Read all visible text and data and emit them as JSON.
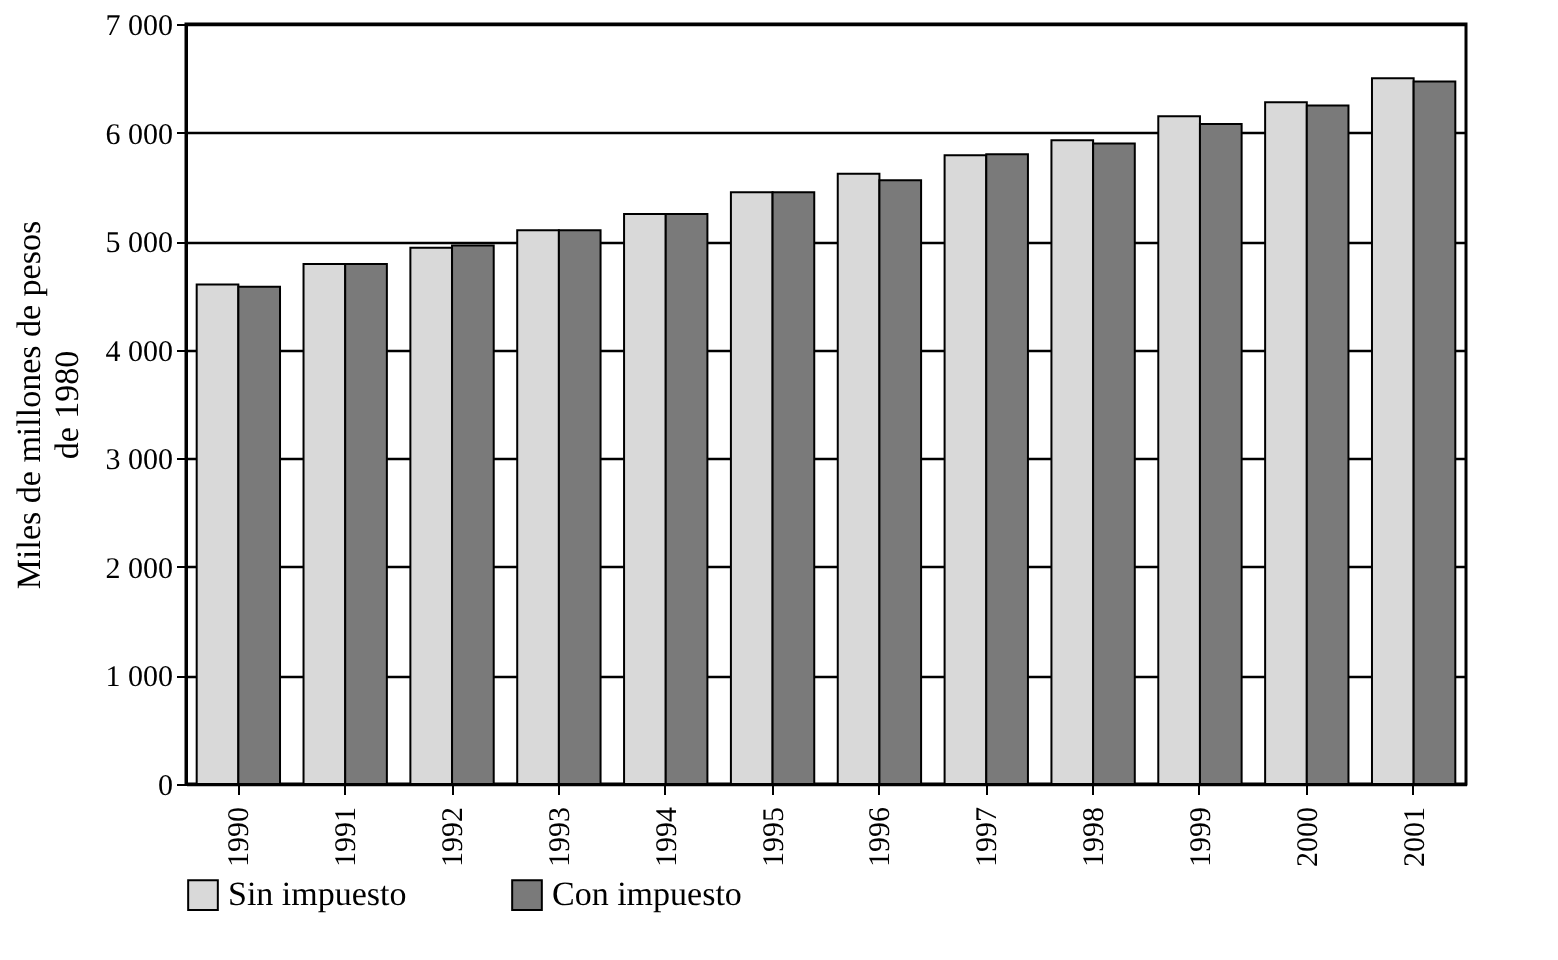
{
  "chart_data": {
    "type": "bar",
    "ylabel": "Miles de millones de pesos\nde 1980",
    "categories": [
      "1990",
      "1991",
      "1992",
      "1993",
      "1994",
      "1995",
      "1996",
      "1997",
      "1998",
      "1999",
      "2000",
      "2001"
    ],
    "series": [
      {
        "name": "Sin impuesto",
        "color": "#d9d9d9",
        "values": [
          4600,
          4790,
          4940,
          5100,
          5250,
          5450,
          5620,
          5790,
          5930,
          6150,
          6280,
          6500
        ]
      },
      {
        "name": "Con impuesto",
        "color": "#7a7a7a",
        "values": [
          4580,
          4790,
          4960,
          5100,
          5250,
          5450,
          5560,
          5800,
          5900,
          6080,
          6250,
          6470
        ]
      }
    ],
    "ylim": [
      0,
      7000
    ],
    "yticks": [
      {
        "value": 0,
        "label": "0"
      },
      {
        "value": 1000,
        "label": "1 000"
      },
      {
        "value": 2000,
        "label": "2 000"
      },
      {
        "value": 3000,
        "label": "3 000"
      },
      {
        "value": 4000,
        "label": "4 000"
      },
      {
        "value": 5000,
        "label": "5 000"
      },
      {
        "value": 6000,
        "label": "6 000"
      },
      {
        "value": 7000,
        "label": "7 000"
      }
    ],
    "grid": "y",
    "legend": "bottom"
  }
}
